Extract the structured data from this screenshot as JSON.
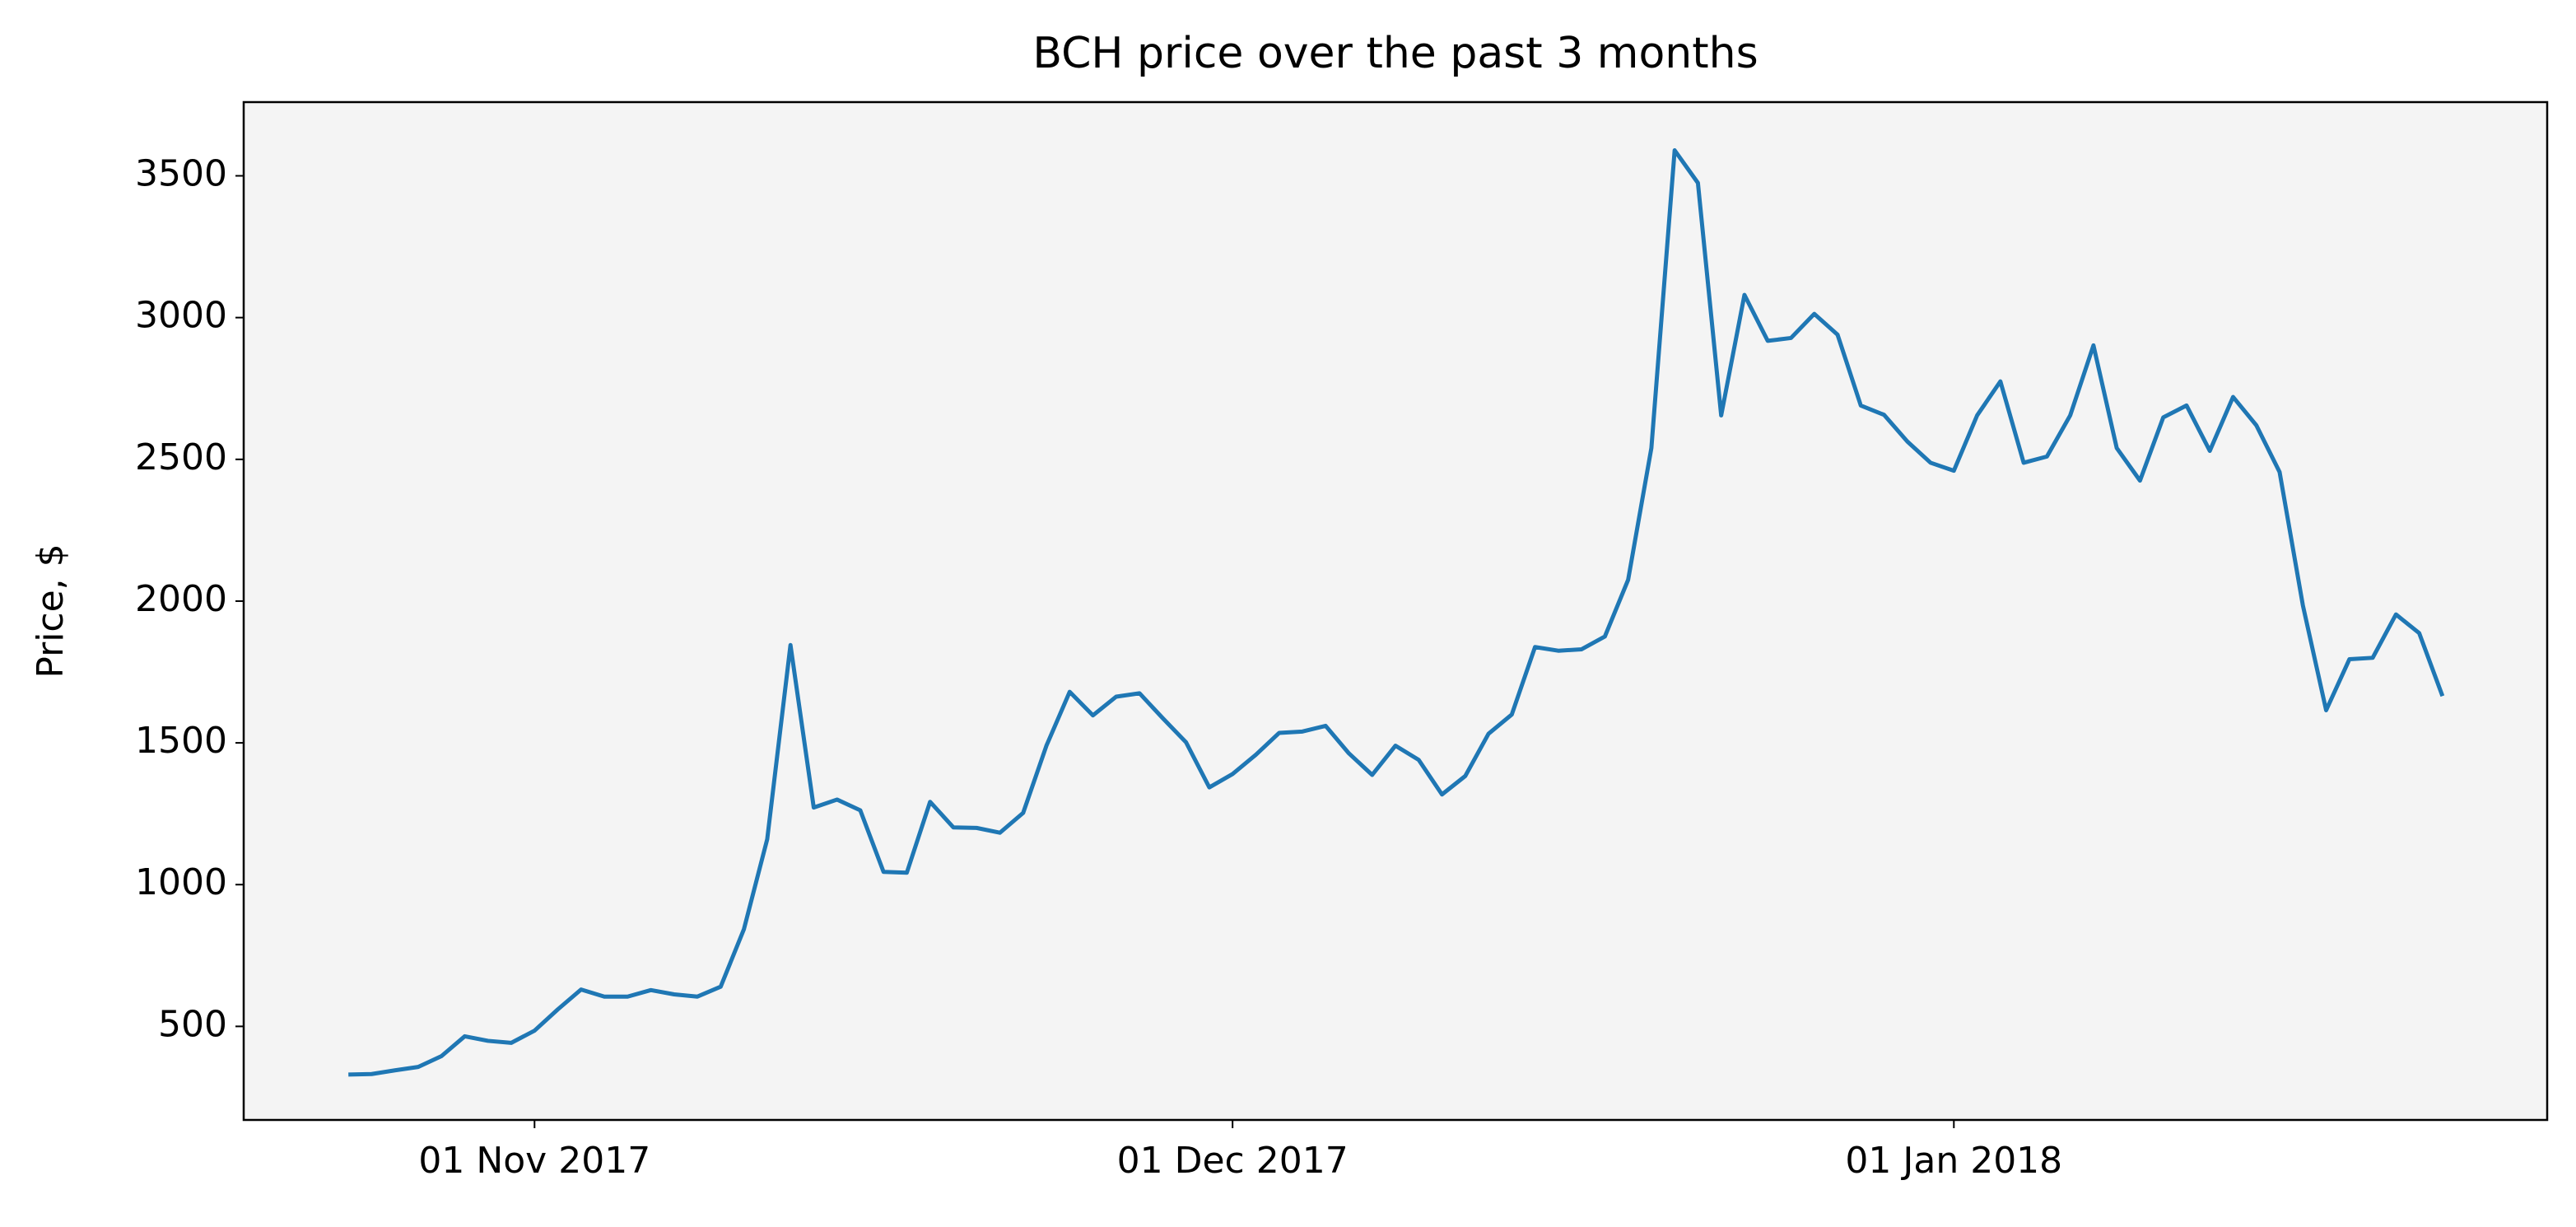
{
  "chart_data": {
    "type": "line",
    "title": "BCH price over the past 3 months",
    "ylabel": "Price, $",
    "x": [
      "2017-10-24",
      "2017-10-25",
      "2017-10-26",
      "2017-10-27",
      "2017-10-28",
      "2017-10-29",
      "2017-10-30",
      "2017-10-31",
      "2017-11-01",
      "2017-11-02",
      "2017-11-03",
      "2017-11-04",
      "2017-11-05",
      "2017-11-06",
      "2017-11-07",
      "2017-11-08",
      "2017-11-09",
      "2017-11-10",
      "2017-11-11",
      "2017-11-12",
      "2017-11-13",
      "2017-11-14",
      "2017-11-15",
      "2017-11-16",
      "2017-11-17",
      "2017-11-18",
      "2017-11-19",
      "2017-11-20",
      "2017-11-21",
      "2017-11-22",
      "2017-11-23",
      "2017-11-24",
      "2017-11-25",
      "2017-11-26",
      "2017-11-27",
      "2017-11-28",
      "2017-11-29",
      "2017-11-30",
      "2017-12-01",
      "2017-12-02",
      "2017-12-03",
      "2017-12-04",
      "2017-12-05",
      "2017-12-06",
      "2017-12-07",
      "2017-12-08",
      "2017-12-09",
      "2017-12-10",
      "2017-12-11",
      "2017-12-12",
      "2017-12-13",
      "2017-12-14",
      "2017-12-15",
      "2017-12-16",
      "2017-12-17",
      "2017-12-18",
      "2017-12-19",
      "2017-12-20",
      "2017-12-21",
      "2017-12-22",
      "2017-12-23",
      "2017-12-24",
      "2017-12-25",
      "2017-12-26",
      "2017-12-27",
      "2017-12-28",
      "2017-12-29",
      "2017-12-30",
      "2017-12-31",
      "2018-01-01",
      "2018-01-02",
      "2018-01-03",
      "2018-01-04",
      "2018-01-05",
      "2018-01-06",
      "2018-01-07",
      "2018-01-08",
      "2018-01-09",
      "2018-01-10",
      "2018-01-11",
      "2018-01-12",
      "2018-01-13",
      "2018-01-14",
      "2018-01-15",
      "2018-01-16",
      "2018-01-17",
      "2018-01-18",
      "2018-01-19",
      "2018-01-20",
      "2018-01-21",
      "2018-01-22"
    ],
    "values": [
      330,
      332,
      345,
      357,
      395,
      465,
      449,
      442,
      485,
      560,
      630,
      605,
      605,
      628,
      613,
      605,
      640,
      843,
      1160,
      1845,
      1272,
      1300,
      1262,
      1045,
      1042,
      1292,
      1202,
      1200,
      1183,
      1253,
      1490,
      1680,
      1597,
      1663,
      1675,
      1587,
      1502,
      1343,
      1390,
      1458,
      1535,
      1540,
      1560,
      1463,
      1387,
      1490,
      1440,
      1318,
      1383,
      1532,
      1600,
      1838,
      1825,
      1830,
      1875,
      2075,
      2540,
      3590,
      3475,
      2655,
      3080,
      2918,
      2928,
      3013,
      2940,
      2690,
      2657,
      2563,
      2488,
      2460,
      2655,
      2775,
      2488,
      2510,
      2655,
      2902,
      2540,
      2425,
      2648,
      2690,
      2530,
      2720,
      2620,
      2455,
      1985,
      1615,
      1795,
      1800,
      1953,
      1887,
      1665
    ],
    "color": "#1f77b4",
    "xlim": [
      "2017-10-19T12:00:00Z",
      "2018-01-26T12:00:00Z"
    ],
    "xticks": [
      {
        "value": "2017-11-01",
        "label": "01 Nov 2017"
      },
      {
        "value": "2017-12-01",
        "label": "01 Dec 2017"
      },
      {
        "value": "2018-01-01",
        "label": "01 Jan 2018"
      }
    ],
    "ylim": [
      170,
      3760
    ],
    "yticks": [
      500,
      1000,
      1500,
      2000,
      2500,
      3000,
      3500
    ],
    "grid": false
  }
}
